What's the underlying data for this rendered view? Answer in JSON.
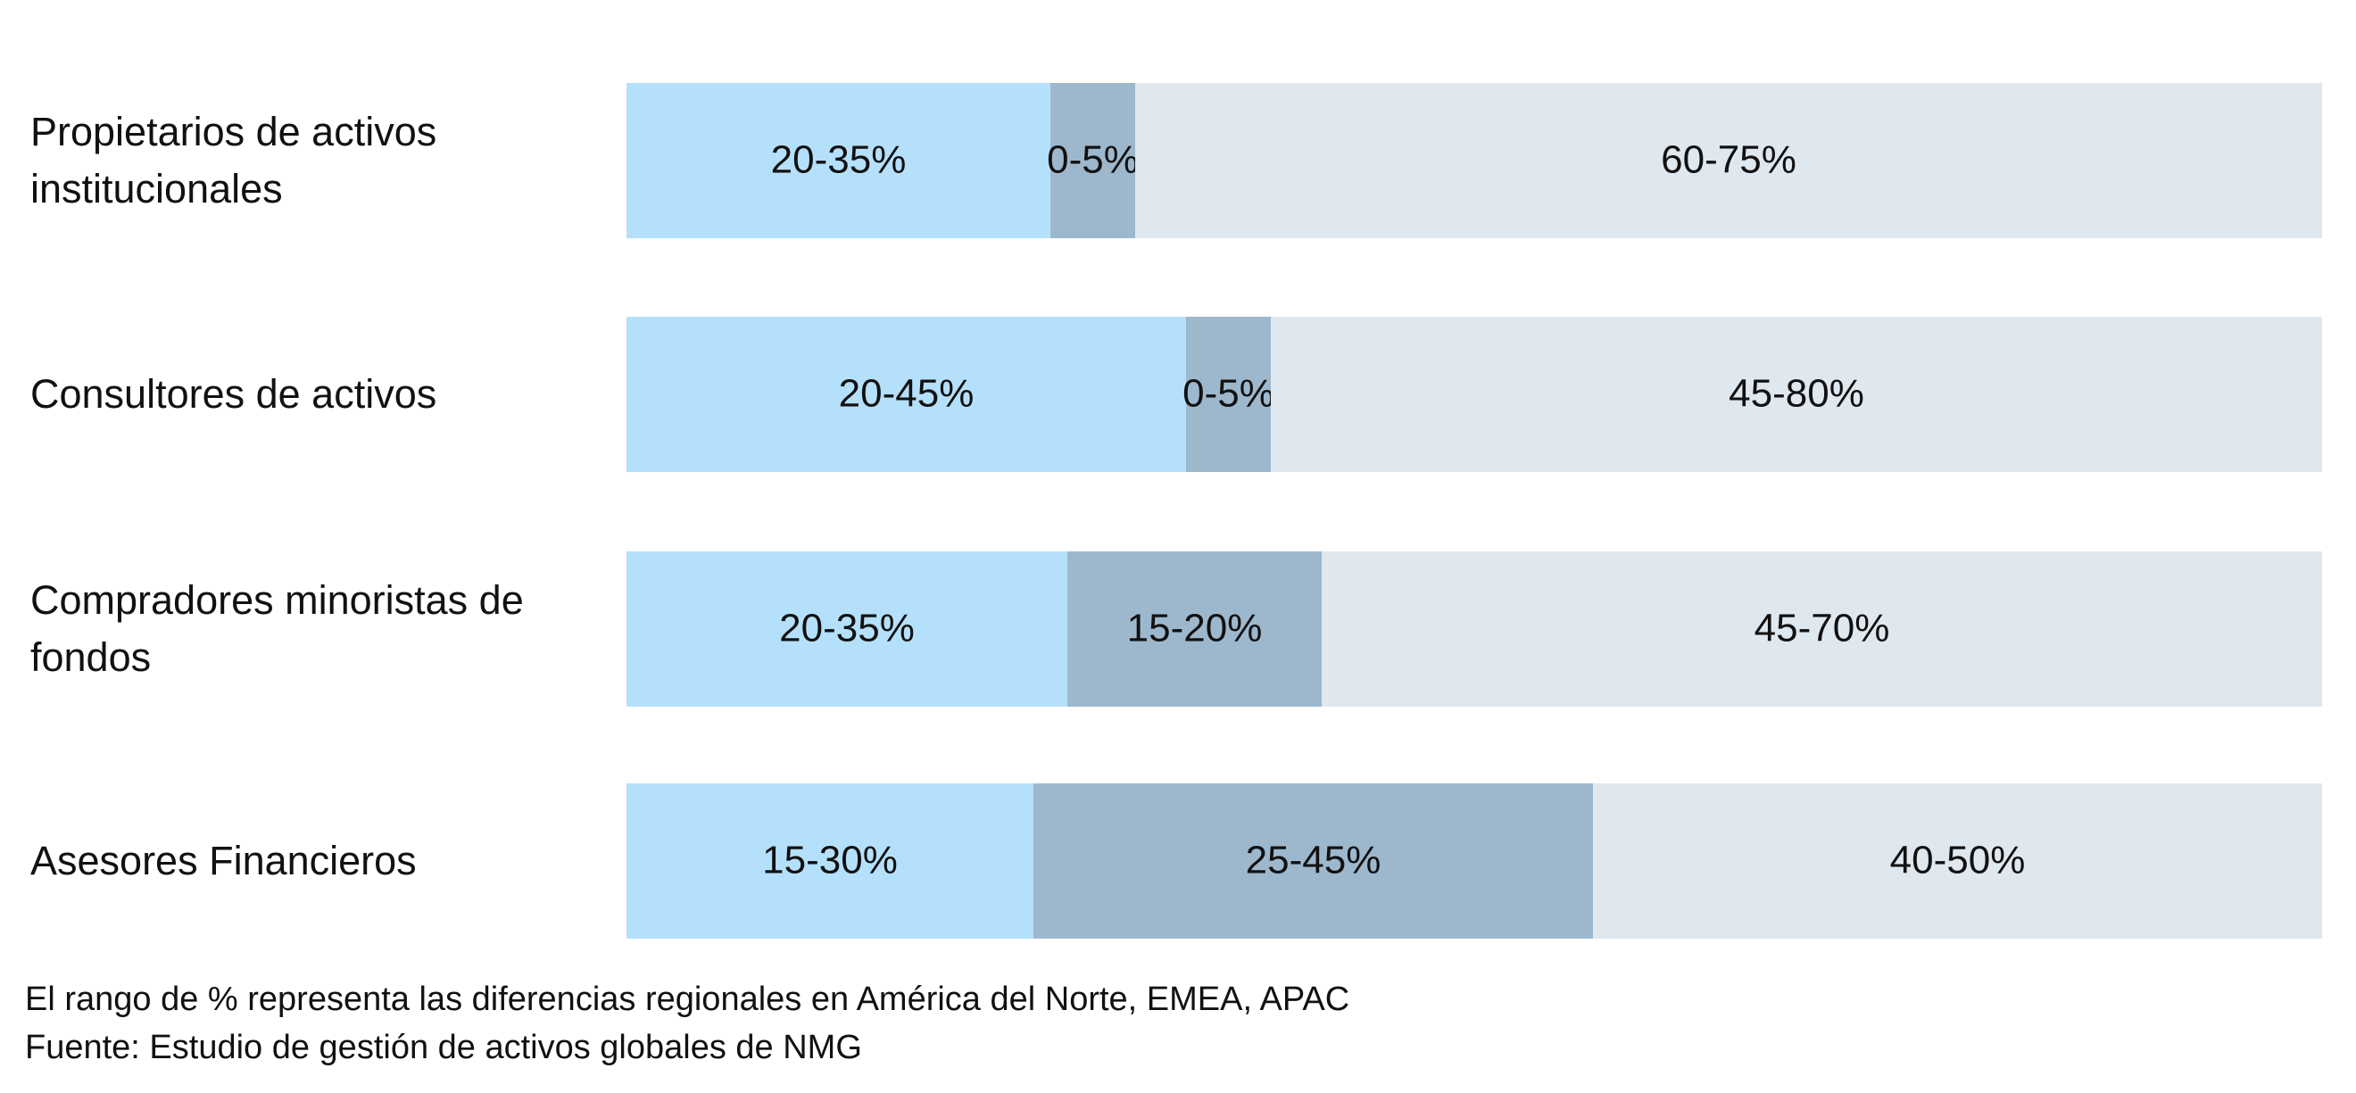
{
  "chart_data": {
    "type": "bar",
    "orientation": "horizontal",
    "stacked": true,
    "categories": [
      "Propietarios de activos institucionales",
      "Consultores de activos",
      "Compradores minoristas de fondos",
      "Asesores Financieros"
    ],
    "series": [
      {
        "color": "#b5e0fb",
        "values": [
          25,
          33,
          26,
          24
        ],
        "value_labels": [
          "20-35%",
          "20-45%",
          "20-35%",
          "15-30%"
        ]
      },
      {
        "color": "#9db8cd",
        "values": [
          5,
          5,
          15,
          33
        ],
        "value_labels": [
          "0-5%",
          "0-5%",
          "15-20%",
          "25-45%"
        ]
      },
      {
        "color": "#dfe7ef",
        "values": [
          70,
          62,
          59,
          43
        ],
        "value_labels": [
          "60-75%",
          "45-80%",
          "45-70%",
          "40-50%"
        ]
      }
    ],
    "xlim": [
      0,
      100
    ],
    "footnotes": [
      "El rango de % representa las diferencias regionales en América del Norte, EMEA, APAC",
      "Fuente: Estudio de gestión de activos globales de NMG"
    ]
  }
}
